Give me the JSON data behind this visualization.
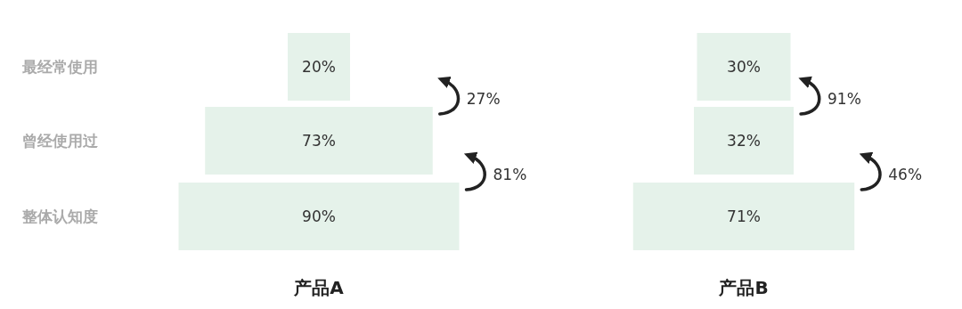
{
  "chart_data": [
    {
      "type": "other",
      "categories": [
        "最经常使用",
        "曾经使用过",
        "整体认知度"
      ],
      "values": [
        20,
        73,
        90
      ],
      "value_labels": [
        "20%",
        "73%",
        "90%"
      ],
      "color": "#e5f2ea",
      "xlabel": "产品A",
      "annotations": [
        "27%",
        "81%"
      ]
    },
    {
      "type": "other",
      "categories": [
        null,
        null,
        null
      ],
      "values": [
        30,
        32,
        71
      ],
      "value_labels": [
        "30%",
        "32%",
        "71%"
      ],
      "color": "#e5f2ea",
      "xlabel": "产品B",
      "annotations": [
        "91%",
        "46%"
      ]
    }
  ]
}
